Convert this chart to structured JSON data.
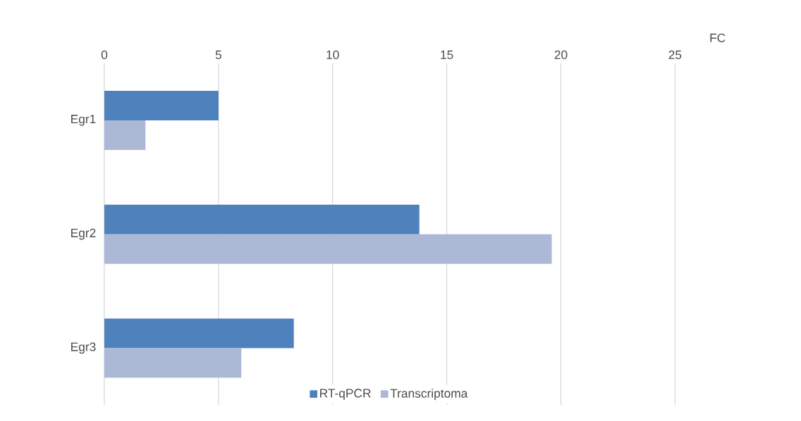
{
  "chart_data": {
    "type": "bar",
    "orientation": "horizontal",
    "xlabel": "FC",
    "categories": [
      "Egr1",
      "Egr2",
      "Egr3"
    ],
    "series": [
      {
        "name": "RT-qPCR",
        "color": "#4f81bd",
        "values": [
          5.0,
          13.8,
          8.3
        ]
      },
      {
        "name": "Transcriptoma",
        "color": "#abb9d6",
        "values": [
          1.8,
          19.6,
          6.0
        ]
      }
    ],
    "xlim": [
      0,
      25
    ],
    "xticks": [
      0,
      5,
      10,
      15,
      20,
      25
    ],
    "grid": "x",
    "legend": "bottom"
  }
}
